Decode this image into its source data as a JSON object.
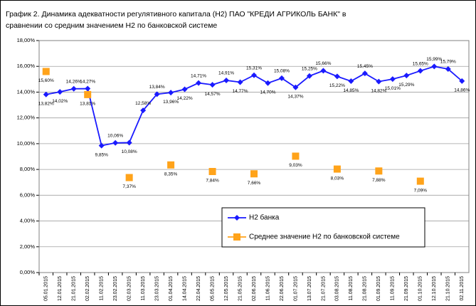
{
  "chart_data": {
    "type": "line",
    "title": "График 2. Динамика адекватности регулятивного капитала (Н2) ПАО \"КРЕДИ АГРИКОЛЬ БАНК\"  в",
    "subtitle": "сравнении со средним значением Н2 по банковской системе",
    "categories": [
      "05.01.2015",
      "12.01.2015",
      "21.01.2015",
      "02.02.2015",
      "11.02.2015",
      "23.02.2015",
      "02.03.2015",
      "11.03.2015",
      "23.03.2015",
      "01.04.2015",
      "14.04.2015",
      "22.04.2015",
      "05.05.2015",
      "12.05.2015",
      "21.05.2015",
      "02.06.2015",
      "11.06.2015",
      "22.06.2015",
      "01.07.2015",
      "13.07.2015",
      "21.07.2015",
      "03.08.2015",
      "11.08.2015",
      "21.08.2015",
      "01.09.2015",
      "11.09.2015",
      "21.09.2015",
      "01.10.2015",
      "12.10.2015",
      "21.10.2015",
      "02.11.2015"
    ],
    "series": [
      {
        "name": "Н2 банка",
        "color": "#1a1aff",
        "marker": "diamond",
        "values": [
          13.82,
          14.02,
          14.26,
          14.27,
          9.85,
          10.06,
          10.08,
          12.58,
          13.84,
          13.96,
          14.22,
          14.71,
          14.57,
          14.91,
          14.77,
          15.31,
          14.7,
          15.08,
          14.37,
          15.25,
          15.66,
          15.22,
          14.85,
          15.45,
          14.82,
          15.01,
          15.29,
          15.65,
          15.99,
          15.79,
          14.86
        ],
        "value_labels": [
          "13,82%",
          "14,02%",
          "14,26%",
          "14,27%",
          "9,85%",
          "10,06%",
          "10,08%",
          "12,58%",
          "13,84%",
          "13,96%",
          "14,22%",
          "14,71%",
          "14,57%",
          "14,91%",
          "14,77%",
          "15,31%",
          "14,70%",
          "15,08%",
          "14,37%",
          "15,25%",
          "15,66%",
          "15,22%",
          "14,85%",
          "15,45%",
          "14,82%",
          "15,01%",
          "15,29%",
          "15,65%",
          "15,99%",
          "15,79%",
          "14,86%"
        ]
      },
      {
        "name": "Среднее значение Н2 по банковской системе",
        "color": "#ffa31a",
        "marker": "square",
        "line": false,
        "values": [
          15.6,
          null,
          null,
          13.81,
          null,
          null,
          7.37,
          null,
          null,
          8.35,
          null,
          null,
          7.84,
          null,
          null,
          7.66,
          null,
          null,
          9.03,
          null,
          null,
          8.03,
          null,
          null,
          7.88,
          null,
          null,
          7.09,
          null,
          null,
          null
        ],
        "value_labels": [
          "15,60%",
          null,
          null,
          "13,81%",
          null,
          null,
          "7,37%",
          null,
          null,
          "8,35%",
          null,
          null,
          "7,84%",
          null,
          null,
          "7,66%",
          null,
          null,
          "9,03%",
          null,
          null,
          "8,03%",
          null,
          null,
          "7,88%",
          null,
          null,
          "7,09%",
          null,
          null,
          null
        ]
      }
    ],
    "ylim": [
      0,
      18
    ],
    "yticks": [
      {
        "value": 0,
        "label": "0,00%"
      },
      {
        "value": 2,
        "label": "2,00%"
      },
      {
        "value": 4,
        "label": "4,00%"
      },
      {
        "value": 6,
        "label": "6,00%"
      },
      {
        "value": 8,
        "label": "8,00%"
      },
      {
        "value": 10,
        "label": "10,00%"
      },
      {
        "value": 12,
        "label": "12,00%"
      },
      {
        "value": 14,
        "label": "14,00%"
      },
      {
        "value": 16,
        "label": "16,00%"
      },
      {
        "value": 18,
        "label": "18,00%"
      }
    ],
    "grid": true
  }
}
